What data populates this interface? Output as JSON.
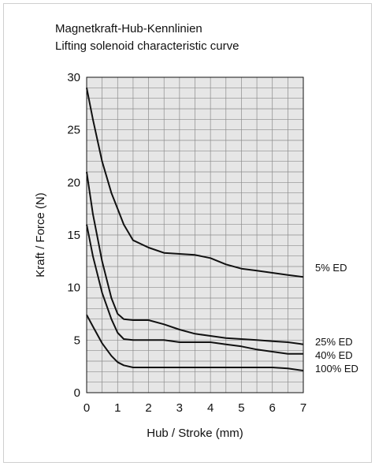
{
  "chart_data": {
    "type": "line",
    "title": "Magnetkraft-Hub-Kennlinien",
    "subtitle": "Lifting solenoid characteristic curve",
    "xlabel": "Hub / Stroke (mm)",
    "ylabel": "Kraft / Force (N)",
    "xlim": [
      0,
      7
    ],
    "ylim": [
      0,
      30
    ],
    "xticks": [
      0,
      1,
      2,
      3,
      4,
      5,
      6,
      7
    ],
    "yticks": [
      0,
      5,
      10,
      15,
      20,
      25,
      30
    ],
    "grid": true,
    "colors": {
      "plot_bg": "#e6e6e6",
      "grid": "#8c8c8c",
      "line": "#111111"
    },
    "series": [
      {
        "name": "5% ED",
        "x": [
          0,
          0.2,
          0.5,
          0.8,
          1.0,
          1.2,
          1.5,
          2.0,
          2.5,
          3.0,
          3.5,
          4.0,
          4.5,
          5.0,
          5.5,
          6.0,
          6.5,
          7.0
        ],
        "y": [
          29,
          26,
          22,
          19,
          17.5,
          16,
          14.5,
          13.8,
          13.3,
          13.2,
          13.1,
          12.8,
          12.2,
          11.8,
          11.6,
          11.4,
          11.2,
          11.0
        ]
      },
      {
        "name": "25% ED",
        "x": [
          0,
          0.2,
          0.5,
          0.8,
          1.0,
          1.2,
          1.5,
          2.0,
          2.5,
          3.0,
          3.5,
          4.0,
          4.5,
          5.0,
          5.5,
          6.0,
          6.5,
          7.0
        ],
        "y": [
          21,
          17,
          12.5,
          9,
          7.5,
          7.0,
          6.9,
          6.9,
          6.5,
          6.0,
          5.6,
          5.4,
          5.2,
          5.1,
          5.0,
          4.9,
          4.8,
          4.6
        ]
      },
      {
        "name": "40% ED",
        "x": [
          0,
          0.2,
          0.5,
          0.8,
          1.0,
          1.2,
          1.5,
          2.0,
          2.5,
          3.0,
          3.5,
          4.0,
          4.5,
          5.0,
          5.5,
          6.0,
          6.5,
          7.0
        ],
        "y": [
          16,
          13,
          9.5,
          7,
          5.7,
          5.1,
          5.0,
          5.0,
          5.0,
          4.8,
          4.8,
          4.8,
          4.6,
          4.4,
          4.1,
          3.9,
          3.7,
          3.7
        ]
      },
      {
        "name": "100% ED",
        "x": [
          0,
          0.2,
          0.5,
          0.8,
          1.0,
          1.2,
          1.5,
          2.0,
          2.5,
          3.0,
          3.5,
          4.0,
          4.5,
          5.0,
          5.5,
          6.0,
          6.5,
          7.0
        ],
        "y": [
          7.4,
          6.3,
          4.7,
          3.5,
          2.9,
          2.6,
          2.4,
          2.4,
          2.4,
          2.4,
          2.4,
          2.4,
          2.4,
          2.4,
          2.4,
          2.4,
          2.3,
          2.1
        ]
      }
    ]
  }
}
